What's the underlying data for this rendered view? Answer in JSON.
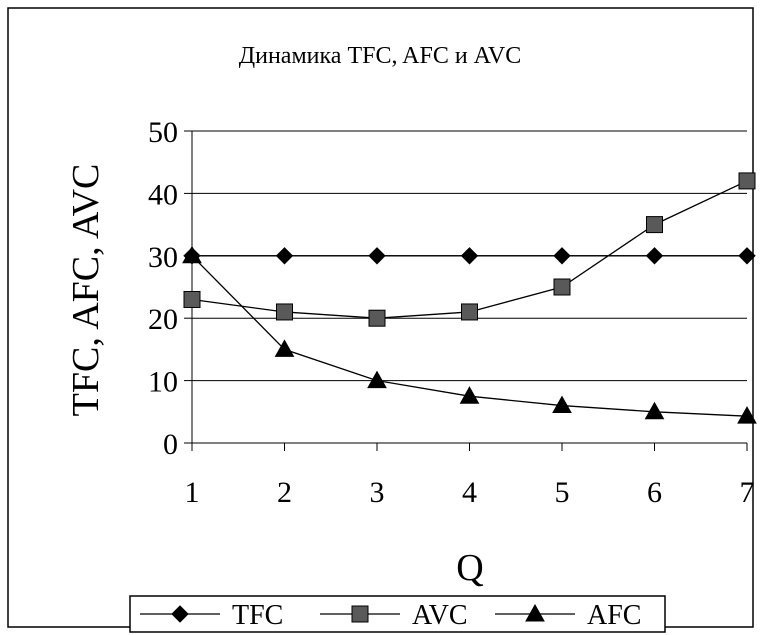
{
  "chart_data": {
    "type": "line",
    "title": "Динамика TFC, AFC и AVC",
    "xlabel": "Q",
    "ylabel": "TFC, AFC, AVC",
    "x": [
      1,
      2,
      3,
      4,
      5,
      6,
      7
    ],
    "xticks": [
      "1",
      "2",
      "3",
      "4",
      "5",
      "6",
      "7"
    ],
    "yticks": [
      "0",
      "10",
      "20",
      "30",
      "40",
      "50"
    ],
    "ylim": [
      0,
      50
    ],
    "grid": "horizontal",
    "legend_position": "bottom",
    "series": [
      {
        "name": "TFC",
        "marker": "diamond",
        "values": [
          30,
          30,
          30,
          30,
          30,
          30,
          30
        ]
      },
      {
        "name": "AVC",
        "marker": "square",
        "values": [
          23,
          21,
          20,
          21,
          25,
          35,
          42
        ]
      },
      {
        "name": "AFC",
        "marker": "triangle",
        "values": [
          30,
          15,
          10,
          7.5,
          6,
          5,
          4.3
        ]
      }
    ],
    "colors": {
      "line": "#000000",
      "marker_square": "#595959",
      "marker_other": "#000000"
    }
  }
}
